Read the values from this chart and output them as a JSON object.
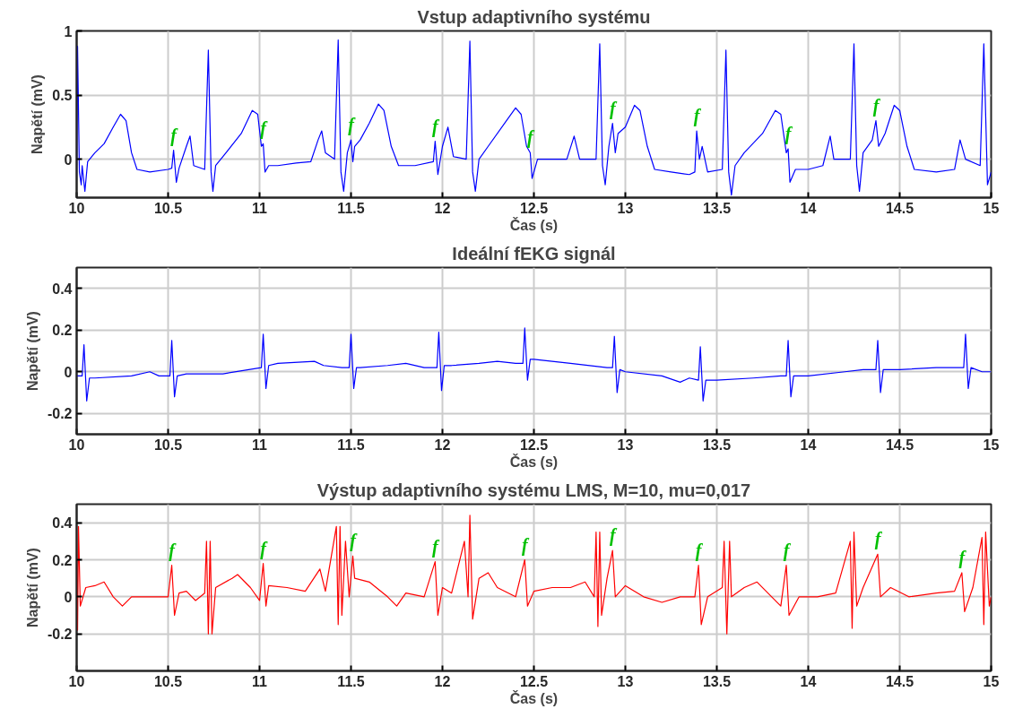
{
  "chart_data": [
    {
      "type": "line",
      "title": "Vstup adaptivního systému",
      "xlabel": "Čas (s)",
      "ylabel": "Napětí (mV)",
      "xlim": [
        10,
        15
      ],
      "ylim": [
        -0.3,
        1
      ],
      "xticks": [
        10,
        10.5,
        11,
        11.5,
        12,
        12.5,
        13,
        13.5,
        14,
        14.5,
        15
      ],
      "yticks": [
        0,
        0.5,
        1
      ],
      "grid": true,
      "x": [
        10.0,
        10.005,
        10.015,
        10.025,
        10.03,
        10.045,
        10.06,
        10.1,
        10.15,
        10.2,
        10.24,
        10.27,
        10.3,
        10.33,
        10.4,
        10.5,
        10.52,
        10.53,
        10.545,
        10.56,
        10.6,
        10.62,
        10.64,
        10.7,
        10.72,
        10.735,
        10.745,
        10.76,
        10.8,
        10.9,
        10.96,
        10.99,
        11.01,
        11.02,
        11.03,
        11.05,
        11.1,
        11.2,
        11.28,
        11.32,
        11.34,
        11.36,
        11.41,
        11.43,
        11.445,
        11.46,
        11.48,
        11.5,
        11.51,
        11.52,
        11.55,
        11.6,
        11.65,
        11.68,
        11.72,
        11.76,
        11.85,
        11.95,
        11.96,
        11.975,
        12.0,
        12.03,
        12.06,
        12.13,
        12.15,
        12.165,
        12.18,
        12.2,
        12.25,
        12.35,
        12.4,
        12.43,
        12.46,
        12.48,
        12.49,
        12.52,
        12.6,
        12.68,
        12.72,
        12.75,
        12.84,
        12.86,
        12.875,
        12.89,
        12.91,
        12.93,
        12.945,
        12.96,
        13.0,
        13.05,
        13.08,
        13.12,
        13.16,
        13.25,
        13.35,
        13.38,
        13.39,
        13.405,
        13.42,
        13.45,
        13.53,
        13.55,
        13.565,
        13.58,
        13.6,
        13.65,
        13.75,
        13.82,
        13.85,
        13.88,
        13.89,
        13.9,
        13.93,
        14.0,
        14.08,
        14.12,
        14.14,
        14.23,
        14.25,
        14.265,
        14.28,
        14.3,
        14.35,
        14.37,
        14.385,
        14.42,
        14.47,
        14.5,
        14.54,
        14.58,
        14.7,
        14.8,
        14.83,
        14.86,
        14.94,
        14.96,
        14.98,
        15.0
      ],
      "series": [
        {
          "color": "#0000ff",
          "values": [
            -0.05,
            0.88,
            -0.1,
            -0.2,
            -0.05,
            -0.25,
            -0.02,
            0.05,
            0.12,
            0.25,
            0.35,
            0.3,
            0.05,
            -0.08,
            -0.1,
            -0.08,
            -0.07,
            0.07,
            -0.18,
            -0.07,
            0.1,
            0.18,
            -0.05,
            -0.08,
            0.85,
            -0.1,
            -0.25,
            -0.05,
            0.02,
            0.2,
            0.38,
            0.35,
            0.1,
            0.12,
            -0.1,
            -0.05,
            -0.05,
            -0.03,
            -0.02,
            0.15,
            0.22,
            0.05,
            0.0,
            0.93,
            -0.1,
            -0.25,
            0.05,
            0.15,
            -0.02,
            0.1,
            0.15,
            0.28,
            0.43,
            0.38,
            0.1,
            -0.05,
            -0.05,
            -0.02,
            0.14,
            -0.12,
            0.1,
            0.25,
            0.02,
            0.0,
            0.92,
            -0.1,
            -0.25,
            0.0,
            0.1,
            0.3,
            0.4,
            0.35,
            0.1,
            0.05,
            -0.15,
            0.0,
            0.0,
            0.0,
            0.18,
            0.0,
            0.0,
            0.9,
            -0.05,
            -0.2,
            0.1,
            0.28,
            0.05,
            0.2,
            0.25,
            0.42,
            0.38,
            0.1,
            -0.08,
            -0.1,
            -0.12,
            -0.1,
            0.22,
            0.0,
            0.1,
            -0.1,
            -0.08,
            0.85,
            -0.1,
            -0.28,
            -0.05,
            0.05,
            0.2,
            0.38,
            0.35,
            0.05,
            0.08,
            -0.18,
            -0.08,
            -0.08,
            -0.05,
            0.18,
            0.0,
            0.0,
            0.9,
            -0.05,
            -0.25,
            0.05,
            0.15,
            0.3,
            0.1,
            0.2,
            0.42,
            0.38,
            0.1,
            -0.08,
            -0.1,
            -0.08,
            0.15,
            0.0,
            -0.05,
            0.9,
            -0.2,
            -0.1
          ]
        }
      ],
      "annotations": [
        {
          "text": "f",
          "x": 10.53,
          "y": 0.07
        },
        {
          "text": "f",
          "x": 11.02,
          "y": 0.12
        },
        {
          "text": "f",
          "x": 11.5,
          "y": 0.15
        },
        {
          "text": "f",
          "x": 11.96,
          "y": 0.14
        },
        {
          "text": "f",
          "x": 12.48,
          "y": 0.05
        },
        {
          "text": "f",
          "x": 12.93,
          "y": 0.28
        },
        {
          "text": "f",
          "x": 13.39,
          "y": 0.22
        },
        {
          "text": "f",
          "x": 13.89,
          "y": 0.08
        },
        {
          "text": "f",
          "x": 14.37,
          "y": 0.3
        }
      ]
    },
    {
      "type": "line",
      "title": "Ideální fEKG signál",
      "xlabel": "Čas (s)",
      "ylabel": "Napětí (mV)",
      "xlim": [
        10,
        15
      ],
      "ylim": [
        -0.3,
        0.5
      ],
      "xticks": [
        10,
        10.5,
        11,
        11.5,
        12,
        12.5,
        13,
        13.5,
        14,
        14.5,
        15
      ],
      "yticks": [
        -0.2,
        0,
        0.2,
        0.4
      ],
      "grid": true,
      "x": [
        10.0,
        10.03,
        10.04,
        10.055,
        10.07,
        10.1,
        10.3,
        10.4,
        10.45,
        10.51,
        10.52,
        10.535,
        10.55,
        10.6,
        10.8,
        11.01,
        11.02,
        11.035,
        11.05,
        11.1,
        11.3,
        11.35,
        11.45,
        11.49,
        11.5,
        11.515,
        11.53,
        11.55,
        11.7,
        11.8,
        11.9,
        11.97,
        11.98,
        11.995,
        12.01,
        12.05,
        12.2,
        12.3,
        12.4,
        12.44,
        12.45,
        12.465,
        12.48,
        12.5,
        12.7,
        12.9,
        12.93,
        12.94,
        12.955,
        12.97,
        13.0,
        13.2,
        13.3,
        13.35,
        13.4,
        13.41,
        13.425,
        13.44,
        13.5,
        13.7,
        13.85,
        13.88,
        13.89,
        13.905,
        13.92,
        14.0,
        14.2,
        14.3,
        14.37,
        14.38,
        14.395,
        14.41,
        14.5,
        14.7,
        14.8,
        14.85,
        14.86,
        14.875,
        14.89,
        14.95,
        15.0
      ],
      "series": [
        {
          "color": "#0000ff",
          "values": [
            -0.02,
            -0.02,
            0.13,
            -0.14,
            -0.03,
            -0.03,
            -0.02,
            0.0,
            -0.02,
            -0.02,
            0.15,
            -0.12,
            -0.02,
            -0.01,
            -0.01,
            0.02,
            0.18,
            -0.08,
            0.03,
            0.04,
            0.05,
            0.03,
            0.02,
            0.02,
            0.18,
            -0.08,
            0.02,
            0.02,
            0.03,
            0.04,
            0.02,
            0.02,
            0.19,
            -0.09,
            0.03,
            0.03,
            0.04,
            0.05,
            0.04,
            0.04,
            0.21,
            -0.04,
            0.06,
            0.06,
            0.04,
            0.02,
            0.02,
            0.17,
            -0.1,
            0.01,
            0.0,
            -0.02,
            -0.05,
            -0.03,
            -0.04,
            0.12,
            -0.14,
            -0.04,
            -0.04,
            -0.03,
            -0.02,
            -0.02,
            0.15,
            -0.12,
            -0.02,
            -0.02,
            0.0,
            0.01,
            0.01,
            0.15,
            -0.1,
            0.01,
            0.01,
            0.02,
            0.02,
            0.02,
            0.18,
            -0.08,
            0.02,
            0.0,
            0.0
          ]
        }
      ]
    },
    {
      "type": "line",
      "title": "Výstup adaptivního systému LMS, M=10, mu=0,017",
      "xlabel": "Čas (s)",
      "ylabel": "Napětí (mV)",
      "xlim": [
        10,
        15
      ],
      "ylim": [
        -0.4,
        0.5
      ],
      "xticks": [
        10,
        10.5,
        11,
        11.5,
        12,
        12.5,
        13,
        13.5,
        14,
        14.5,
        15
      ],
      "yticks": [
        -0.2,
        0,
        0.2,
        0.4
      ],
      "grid": true,
      "x": [
        10.0,
        10.005,
        10.01,
        10.02,
        10.05,
        10.1,
        10.15,
        10.2,
        10.25,
        10.3,
        10.4,
        10.5,
        10.52,
        10.535,
        10.56,
        10.6,
        10.65,
        10.7,
        10.71,
        10.72,
        10.73,
        10.74,
        10.76,
        10.85,
        10.88,
        10.95,
        11.0,
        11.02,
        11.035,
        11.05,
        11.15,
        11.25,
        11.33,
        11.36,
        11.42,
        11.43,
        11.44,
        11.45,
        11.47,
        11.49,
        11.51,
        11.52,
        11.6,
        11.7,
        11.75,
        11.8,
        11.9,
        11.96,
        11.975,
        12.0,
        12.05,
        12.12,
        12.14,
        12.15,
        12.165,
        12.2,
        12.25,
        12.3,
        12.4,
        12.45,
        12.465,
        12.5,
        12.6,
        12.7,
        12.78,
        12.83,
        12.84,
        12.85,
        12.86,
        12.87,
        12.9,
        12.93,
        12.945,
        13.0,
        13.1,
        13.2,
        13.3,
        13.38,
        13.4,
        13.415,
        13.45,
        13.53,
        13.54,
        13.555,
        13.57,
        13.58,
        13.65,
        13.72,
        13.8,
        13.85,
        13.88,
        13.895,
        13.95,
        14.05,
        14.15,
        14.23,
        14.24,
        14.25,
        14.265,
        14.3,
        14.38,
        14.395,
        14.45,
        14.55,
        14.7,
        14.8,
        14.84,
        14.855,
        14.9,
        14.95,
        14.96,
        14.97,
        14.99,
        15.0
      ],
      "series": [
        {
          "color": "#ff0000",
          "values": [
            0.2,
            -0.18,
            0.38,
            -0.05,
            0.05,
            0.06,
            0.08,
            0.0,
            -0.05,
            0.0,
            0.0,
            0.0,
            0.17,
            -0.1,
            0.02,
            0.03,
            -0.02,
            0.02,
            0.3,
            -0.2,
            0.3,
            -0.2,
            0.05,
            0.1,
            0.12,
            0.05,
            -0.02,
            0.18,
            -0.05,
            0.06,
            0.05,
            0.03,
            0.15,
            0.03,
            0.38,
            -0.15,
            0.38,
            -0.1,
            0.3,
            0.0,
            0.22,
            0.1,
            0.08,
            0.0,
            -0.05,
            0.02,
            0.0,
            0.19,
            -0.1,
            0.05,
            0.02,
            0.3,
            0.0,
            0.44,
            -0.12,
            0.1,
            0.13,
            0.05,
            0.0,
            0.2,
            -0.05,
            0.03,
            0.05,
            0.05,
            0.08,
            0.0,
            0.35,
            -0.16,
            0.35,
            -0.1,
            0.1,
            0.25,
            0.0,
            0.06,
            0.0,
            -0.03,
            0.0,
            0.0,
            0.17,
            -0.15,
            0.0,
            0.05,
            0.3,
            -0.2,
            0.3,
            0.0,
            0.05,
            0.08,
            0.0,
            -0.05,
            0.17,
            -0.1,
            0.0,
            0.0,
            0.02,
            0.3,
            -0.17,
            0.35,
            -0.05,
            0.05,
            0.23,
            0.0,
            0.05,
            0.0,
            0.02,
            0.03,
            0.13,
            -0.08,
            0.05,
            0.32,
            -0.15,
            0.35,
            -0.05,
            0.0
          ]
        }
      ],
      "annotations": [
        {
          "text": "f",
          "x": 10.52,
          "y": 0.17
        },
        {
          "text": "f",
          "x": 11.02,
          "y": 0.18
        },
        {
          "text": "f",
          "x": 11.51,
          "y": 0.22
        },
        {
          "text": "f",
          "x": 11.96,
          "y": 0.19
        },
        {
          "text": "f",
          "x": 12.45,
          "y": 0.2
        },
        {
          "text": "f",
          "x": 12.93,
          "y": 0.25
        },
        {
          "text": "f",
          "x": 13.4,
          "y": 0.17
        },
        {
          "text": "f",
          "x": 13.88,
          "y": 0.17
        },
        {
          "text": "f",
          "x": 14.38,
          "y": 0.23
        },
        {
          "text": "f",
          "x": 14.84,
          "y": 0.13
        }
      ]
    }
  ]
}
